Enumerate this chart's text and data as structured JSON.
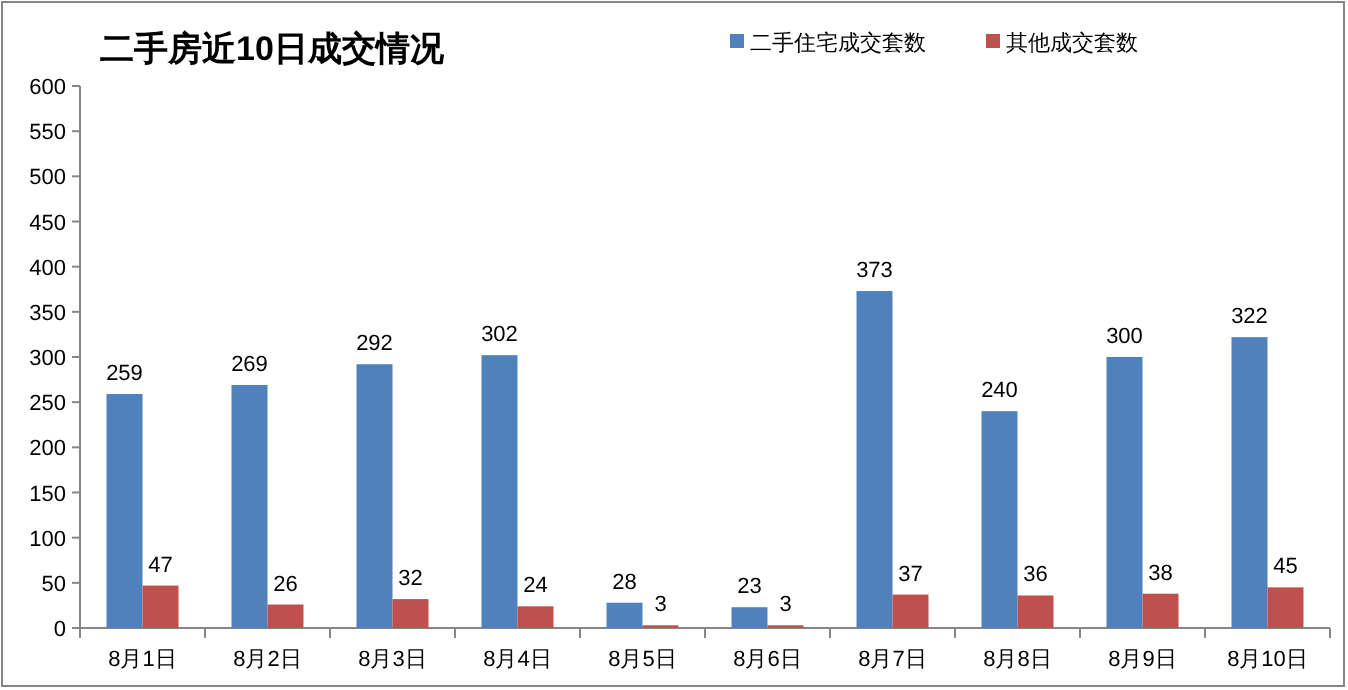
{
  "chart_data": {
    "type": "bar",
    "title": "二手房近10日成交情况",
    "categories": [
      "8月1日",
      "8月2日",
      "8月3日",
      "8月4日",
      "8月5日",
      "8月6日",
      "8月7日",
      "8月8日",
      "8月9日",
      "8月10日"
    ],
    "series": [
      {
        "name": "二手住宅成交套数",
        "color": "#4f81bd",
        "values": [
          259,
          269,
          292,
          302,
          28,
          23,
          373,
          240,
          300,
          322
        ]
      },
      {
        "name": "其他成交套数",
        "color": "#c0504d",
        "values": [
          47,
          26,
          32,
          24,
          3,
          3,
          37,
          36,
          38,
          45
        ]
      }
    ],
    "ylim": [
      0,
      600
    ],
    "yticks": [
      0,
      50,
      100,
      150,
      200,
      250,
      300,
      350,
      400,
      450,
      500,
      550,
      600
    ],
    "data_labels": true,
    "legend": "top right",
    "grid": false
  }
}
